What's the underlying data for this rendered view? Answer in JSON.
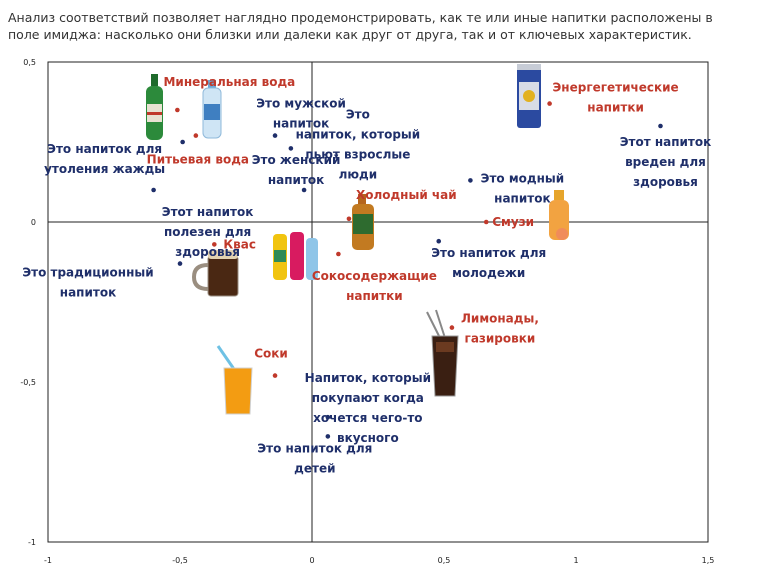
{
  "intro_text": "Анализ соответствий позволяет наглядно продемонстрировать, как те или иные напитки расположены в поле имиджа: насколько они близки или далеки как друг от друга, так и от ключевых характеристик.",
  "chart_data": {
    "type": "scatter",
    "title": "",
    "xlabel": "",
    "ylabel": "",
    "xlim": [
      -1,
      1.5
    ],
    "ylim": [
      -1,
      0.5
    ],
    "x_ticks": [
      "-1",
      "-0,5",
      "0",
      "0,5",
      "1",
      "1,5"
    ],
    "y_ticks": [
      "0,5",
      "0",
      "-0,5",
      "-1"
    ],
    "grid": false,
    "colors": {
      "characteristic": "#1f2f6a",
      "drink": "#c0392b"
    },
    "series": [
      {
        "group": "characteristic",
        "points": [
          {
            "label": [
              "Это мужской",
              "напиток"
            ],
            "x": -0.14,
            "y": 0.27
          },
          {
            "label": [
              "Это",
              "напиток, который",
              "пьют взрослые",
              "люди"
            ],
            "x": -0.08,
            "y": 0.23
          },
          {
            "label": [
              "Это напиток для",
              "утоления жажды"
            ],
            "x": -0.49,
            "y": 0.25
          },
          {
            "label": [
              "Этот напиток",
              "полезен для",
              "здоровья"
            ],
            "x": -0.6,
            "y": 0.1
          },
          {
            "label": [
              "Это женский",
              "напиток"
            ],
            "x": -0.03,
            "y": 0.1
          },
          {
            "label": [
              "Это модный",
              "напиток"
            ],
            "x": 0.6,
            "y": 0.13
          },
          {
            "label": [
              "Этот напиток",
              "вреден для",
              "здоровья"
            ],
            "x": 1.32,
            "y": 0.3
          },
          {
            "label": [
              "Это напиток для",
              "молодежи"
            ],
            "x": 0.48,
            "y": -0.06
          },
          {
            "label": [
              "Это традиционный",
              "напиток"
            ],
            "x": -0.5,
            "y": -0.13
          },
          {
            "label": [
              "Напиток, который",
              "покупают когда",
              "хочется чего-то",
              "вкусного"
            ],
            "x": 0.06,
            "y": -0.61
          },
          {
            "label": [
              "Это напиток для",
              "детей"
            ],
            "x": 0.06,
            "y": -0.67
          }
        ]
      },
      {
        "group": "drink",
        "points": [
          {
            "label": [
              "Минеральная вода"
            ],
            "x": -0.51,
            "y": 0.35
          },
          {
            "label": [
              "Питьевая вода"
            ],
            "x": -0.44,
            "y": 0.27
          },
          {
            "label": [
              "Энергегетические",
              "напитки"
            ],
            "x": 0.9,
            "y": 0.37
          },
          {
            "label": [
              "Холодный чай"
            ],
            "x": 0.14,
            "y": 0.01
          },
          {
            "label": [
              "Смузи"
            ],
            "x": 0.66,
            "y": 0.0
          },
          {
            "label": [
              "Квас"
            ],
            "x": -0.37,
            "y": -0.07
          },
          {
            "label": [
              "Сокосодержащие",
              "напитки"
            ],
            "x": 0.1,
            "y": -0.1
          },
          {
            "label": [
              "Лимонады,",
              "газировки"
            ],
            "x": 0.53,
            "y": -0.33
          },
          {
            "label": [
              "Соки"
            ],
            "x": -0.14,
            "y": -0.48
          }
        ]
      }
    ],
    "images": [
      "mineral-water-bottle",
      "drinking-water-bottle",
      "energy-drink-can",
      "iced-tea-bottle",
      "smoothie-bottle",
      "kvass-mug",
      "juice-drink-bottles",
      "lemonade-glass",
      "juice-glass"
    ]
  }
}
